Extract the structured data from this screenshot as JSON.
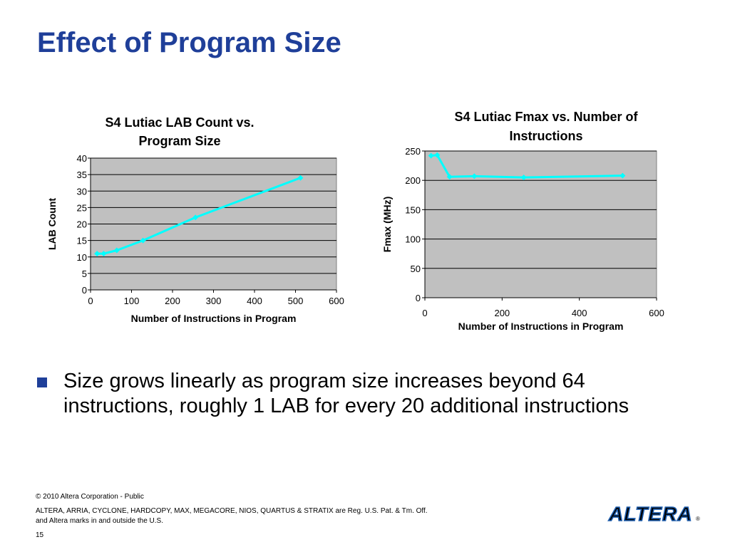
{
  "slide": {
    "title": "Effect of Program Size",
    "bullet": "Size grows linearly as program size increases beyond 64 instructions, roughly 1 LAB for every 20 additional instructions"
  },
  "footer": {
    "copyright": "© 2010 Altera Corporation - Public",
    "trademark_line1": "ALTERA, ARRIA, CYCLONE, HARDCOPY, MAX, MEGACORE, NIOS, QUARTUS & STRATIX are Reg. U.S. Pat. & Tm. Off.",
    "trademark_line2": "and Altera marks in and outside the U.S.",
    "page_number": "15",
    "logo_text": "ALTERA",
    "logo_reg": "®"
  },
  "colors": {
    "title": "#1f3f99",
    "plot_bg": "#c0c0c0",
    "series": "#00ffff",
    "logo": "#1f5fb0"
  },
  "chart_data": [
    {
      "type": "line",
      "title_lines": [
        "S4 Lutiac LAB Count vs.",
        "Program Size"
      ],
      "xlabel": "Number of Instructions in Program",
      "ylabel": "LAB Count",
      "xlim": [
        0,
        600
      ],
      "ylim": [
        0,
        40
      ],
      "xticks": [
        0,
        100,
        200,
        300,
        400,
        500,
        600
      ],
      "yticks": [
        0,
        5,
        10,
        15,
        20,
        25,
        30,
        35,
        40
      ],
      "grid": true,
      "series": [
        {
          "x": [
            16,
            32,
            64,
            128,
            256,
            512
          ],
          "y": [
            11,
            11,
            12,
            15,
            22,
            34
          ]
        }
      ]
    },
    {
      "type": "line",
      "title_lines": [
        "S4 Lutiac Fmax vs. Number of",
        "Instructions"
      ],
      "xlabel": "Number of Instructions in Program",
      "ylabel": "Fmax (MHz)",
      "xlim": [
        0,
        600
      ],
      "ylim": [
        0,
        250
      ],
      "xticks": [
        0,
        200,
        400,
        600
      ],
      "yticks": [
        0,
        50,
        100,
        150,
        200,
        250
      ],
      "grid": true,
      "series": [
        {
          "x": [
            16,
            32,
            64,
            128,
            256,
            512
          ],
          "y": [
            242,
            243,
            206,
            207,
            205,
            208
          ]
        }
      ]
    }
  ]
}
